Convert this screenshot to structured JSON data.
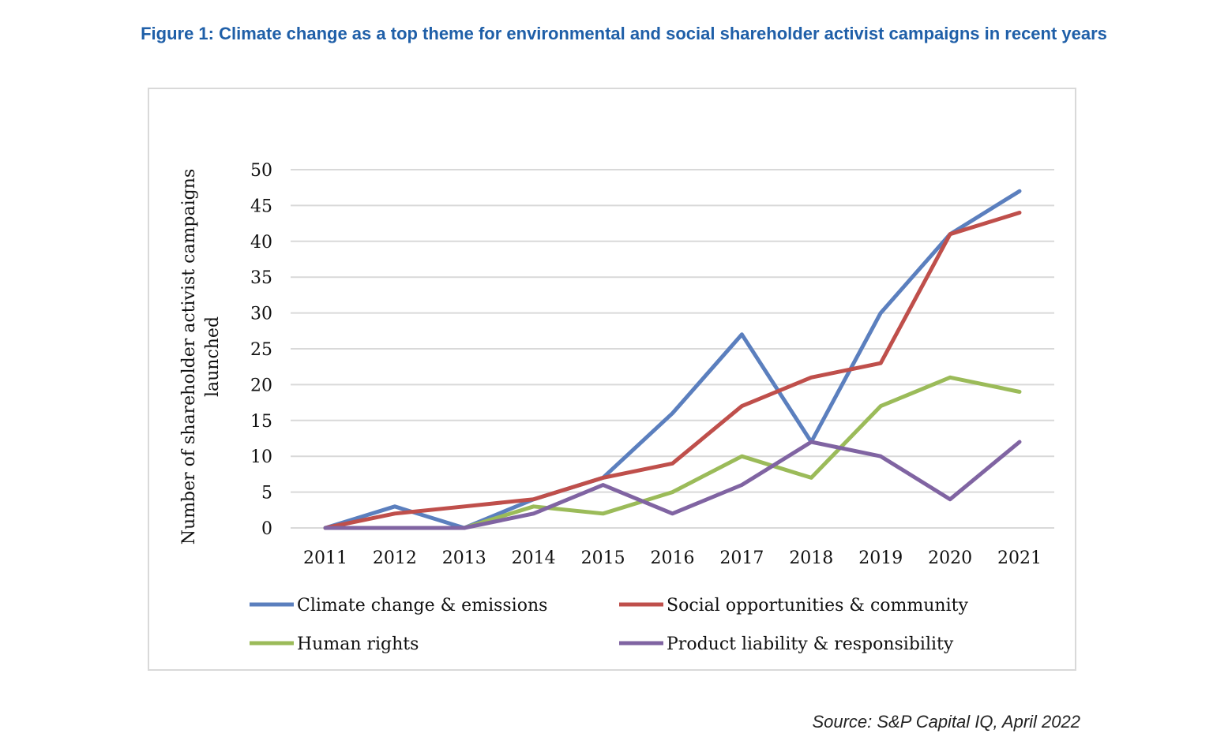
{
  "figure_title": "Figure 1: Climate change as a top theme for environmental and social shareholder activist campaigns in recent years",
  "source": "Source: S&P Capital IQ, April 2022",
  "chart_data": {
    "type": "line",
    "title": "",
    "xlabel": "",
    "ylabel": "Number of shareholder activist campaigns launched",
    "ylabel_lines": [
      "Number of shareholder activist campaigns",
      "launched"
    ],
    "categories": [
      "2011",
      "2012",
      "2013",
      "2014",
      "2015",
      "2016",
      "2017",
      "2018",
      "2019",
      "2020",
      "2021"
    ],
    "ylim": [
      0,
      50
    ],
    "yticks": [
      0,
      5,
      10,
      15,
      20,
      25,
      30,
      35,
      40,
      45,
      50
    ],
    "grid": true,
    "legend": "bottom",
    "series": [
      {
        "name": "Climate change & emissions",
        "color": "#5b7fbe",
        "values": [
          0,
          3,
          0,
          4,
          7,
          16,
          27,
          12,
          30,
          41,
          47
        ]
      },
      {
        "name": "Social opportunities & community",
        "color": "#bf4f4b",
        "values": [
          0,
          2,
          3,
          4,
          7,
          9,
          17,
          21,
          23,
          41,
          44
        ]
      },
      {
        "name": "Human rights",
        "color": "#9bbb59",
        "values": [
          0,
          0,
          0,
          3,
          2,
          5,
          10,
          7,
          17,
          21,
          19
        ]
      },
      {
        "name": "Product liability & responsibility",
        "color": "#8064a2",
        "values": [
          0,
          0,
          0,
          2,
          6,
          2,
          6,
          12,
          10,
          4,
          12
        ]
      }
    ]
  }
}
